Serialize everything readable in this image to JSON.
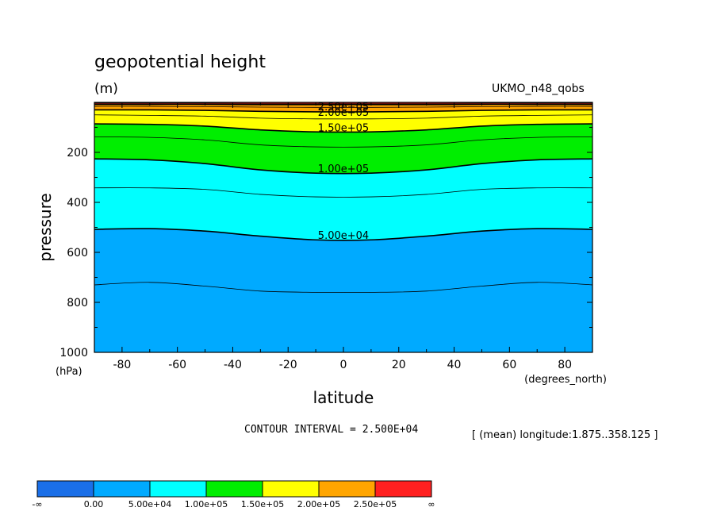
{
  "header": {
    "title": "geopotential height",
    "units": "(m)",
    "dataset": "UKMO_n48_qobs"
  },
  "footer": {
    "contour_interval": "CONTOUR INTERVAL = 2.500E+04",
    "averaging": "[ (mean) longitude:1.875..358.125 ]"
  },
  "chart_data": {
    "type": "heatmap",
    "title": "geopotential height",
    "subtitle": "(m)",
    "xlabel": "latitude",
    "x_units": "(degrees_north)",
    "ylabel": "pressure",
    "y_units": "(hPa)",
    "xlim": [
      -90,
      90
    ],
    "ylim": [
      1000,
      0
    ],
    "x_ticks": [
      -80,
      -60,
      -40,
      -20,
      0,
      20,
      40,
      60,
      80
    ],
    "x_tick_labels": [
      "-80",
      "-60",
      "-40",
      "-20",
      "0",
      "20",
      "40",
      "60",
      "80"
    ],
    "y_ticks": [
      200,
      400,
      600,
      800,
      1000
    ],
    "y_tick_labels": [
      "200",
      "400",
      "600",
      "800",
      "1000"
    ],
    "contour_interval": 25000,
    "contours": [
      {
        "level": 25000,
        "label": "",
        "lat": [
          -90,
          -70,
          -50,
          -30,
          -10,
          10,
          30,
          50,
          70,
          90
        ],
        "p": [
          730,
          720,
          735,
          755,
          760,
          760,
          755,
          735,
          720,
          730
        ]
      },
      {
        "level": 50000,
        "label": "5.00e+04",
        "lat": [
          -90,
          -70,
          -50,
          -30,
          -10,
          10,
          30,
          50,
          70,
          90
        ],
        "p": [
          508,
          505,
          515,
          535,
          550,
          550,
          535,
          515,
          505,
          508
        ]
      },
      {
        "level": 75000,
        "label": "",
        "lat": [
          -90,
          -70,
          -50,
          -30,
          -10,
          10,
          30,
          50,
          70,
          90
        ],
        "p": [
          342,
          342,
          348,
          368,
          378,
          378,
          368,
          348,
          342,
          342
        ]
      },
      {
        "level": 100000,
        "label": "1.00e+05",
        "lat": [
          -90,
          -70,
          -50,
          -30,
          -10,
          10,
          30,
          50,
          70,
          90
        ],
        "p": [
          226,
          230,
          245,
          270,
          283,
          283,
          270,
          245,
          230,
          226
        ]
      },
      {
        "level": 125000,
        "label": "",
        "lat": [
          -90,
          -70,
          -50,
          -30,
          -10,
          10,
          30,
          50,
          70,
          90
        ],
        "p": [
          138,
          140,
          150,
          170,
          178,
          178,
          170,
          150,
          140,
          138
        ]
      },
      {
        "level": 150000,
        "label": "1.50e+05",
        "lat": [
          -90,
          -70,
          -50,
          -30,
          -10,
          10,
          30,
          50,
          70,
          90
        ],
        "p": [
          86,
          88,
          95,
          110,
          118,
          118,
          110,
          95,
          88,
          86
        ]
      },
      {
        "level": 175000,
        "label": "",
        "lat": [
          -90,
          -70,
          -50,
          -30,
          -10,
          10,
          30,
          50,
          70,
          90
        ],
        "p": [
          50,
          52,
          55,
          63,
          66,
          66,
          63,
          55,
          52,
          50
        ]
      },
      {
        "level": 200000,
        "label": "2.00e+05",
        "lat": [
          -90,
          -70,
          -50,
          -30,
          -10,
          10,
          30,
          50,
          70,
          90
        ],
        "p": [
          30,
          30,
          32,
          36,
          38,
          38,
          36,
          32,
          30,
          30
        ]
      },
      {
        "level": 225000,
        "label": "",
        "lat": [
          -90,
          -70,
          -50,
          -30,
          -10,
          10,
          30,
          50,
          70,
          90
        ],
        "p": [
          16,
          16,
          17,
          19,
          20,
          20,
          19,
          17,
          16,
          16
        ]
      },
      {
        "level": 250000,
        "label": "2.50e+05",
        "lat": [
          -90,
          -70,
          -50,
          -30,
          -10,
          10,
          30,
          50,
          70,
          90
        ],
        "p": [
          8,
          8,
          8,
          9,
          9,
          9,
          9,
          8,
          8,
          8
        ]
      },
      {
        "level": 275000,
        "label": "",
        "lat": [
          -90,
          -70,
          -50,
          -30,
          -10,
          10,
          30,
          50,
          70,
          90
        ],
        "p": [
          3,
          3,
          3,
          4,
          4,
          4,
          4,
          3,
          3,
          3
        ]
      }
    ],
    "contour_labels": [
      {
        "text": "5.00e+04",
        "lat": 0,
        "p": 530
      },
      {
        "text": "1.00e+05",
        "lat": 0,
        "p": 263
      },
      {
        "text": "1.50e+05",
        "lat": 0,
        "p": 100
      },
      {
        "text": "2.00e+05",
        "lat": 0,
        "p": 38
      },
      {
        "text": "2.50e+05",
        "lat": 0,
        "p": 16
      }
    ],
    "fill_bands": [
      {
        "from": 0,
        "to": 50000,
        "color": "#00aaff"
      },
      {
        "from": 50000,
        "to": 100000,
        "color": "#00ffff"
      },
      {
        "from": 100000,
        "to": 150000,
        "color": "#00ee00"
      },
      {
        "from": 150000,
        "to": 200000,
        "color": "#ffff00"
      },
      {
        "from": 200000,
        "to": 250000,
        "color": "#ffa500"
      },
      {
        "from": 250000,
        "to": 300000,
        "color": "#ff2020"
      }
    ],
    "colorbar": {
      "colors": [
        "#1a6fe8",
        "#00aaff",
        "#00ffff",
        "#00ee00",
        "#ffff00",
        "#ffa500",
        "#ff2020"
      ],
      "labels": [
        "-∞",
        "0.00",
        "5.00e+04",
        "1.00e+05",
        "1.50e+05",
        "2.00e+05",
        "2.50e+05",
        "∞"
      ]
    },
    "grid": false,
    "legend": "bottom"
  }
}
